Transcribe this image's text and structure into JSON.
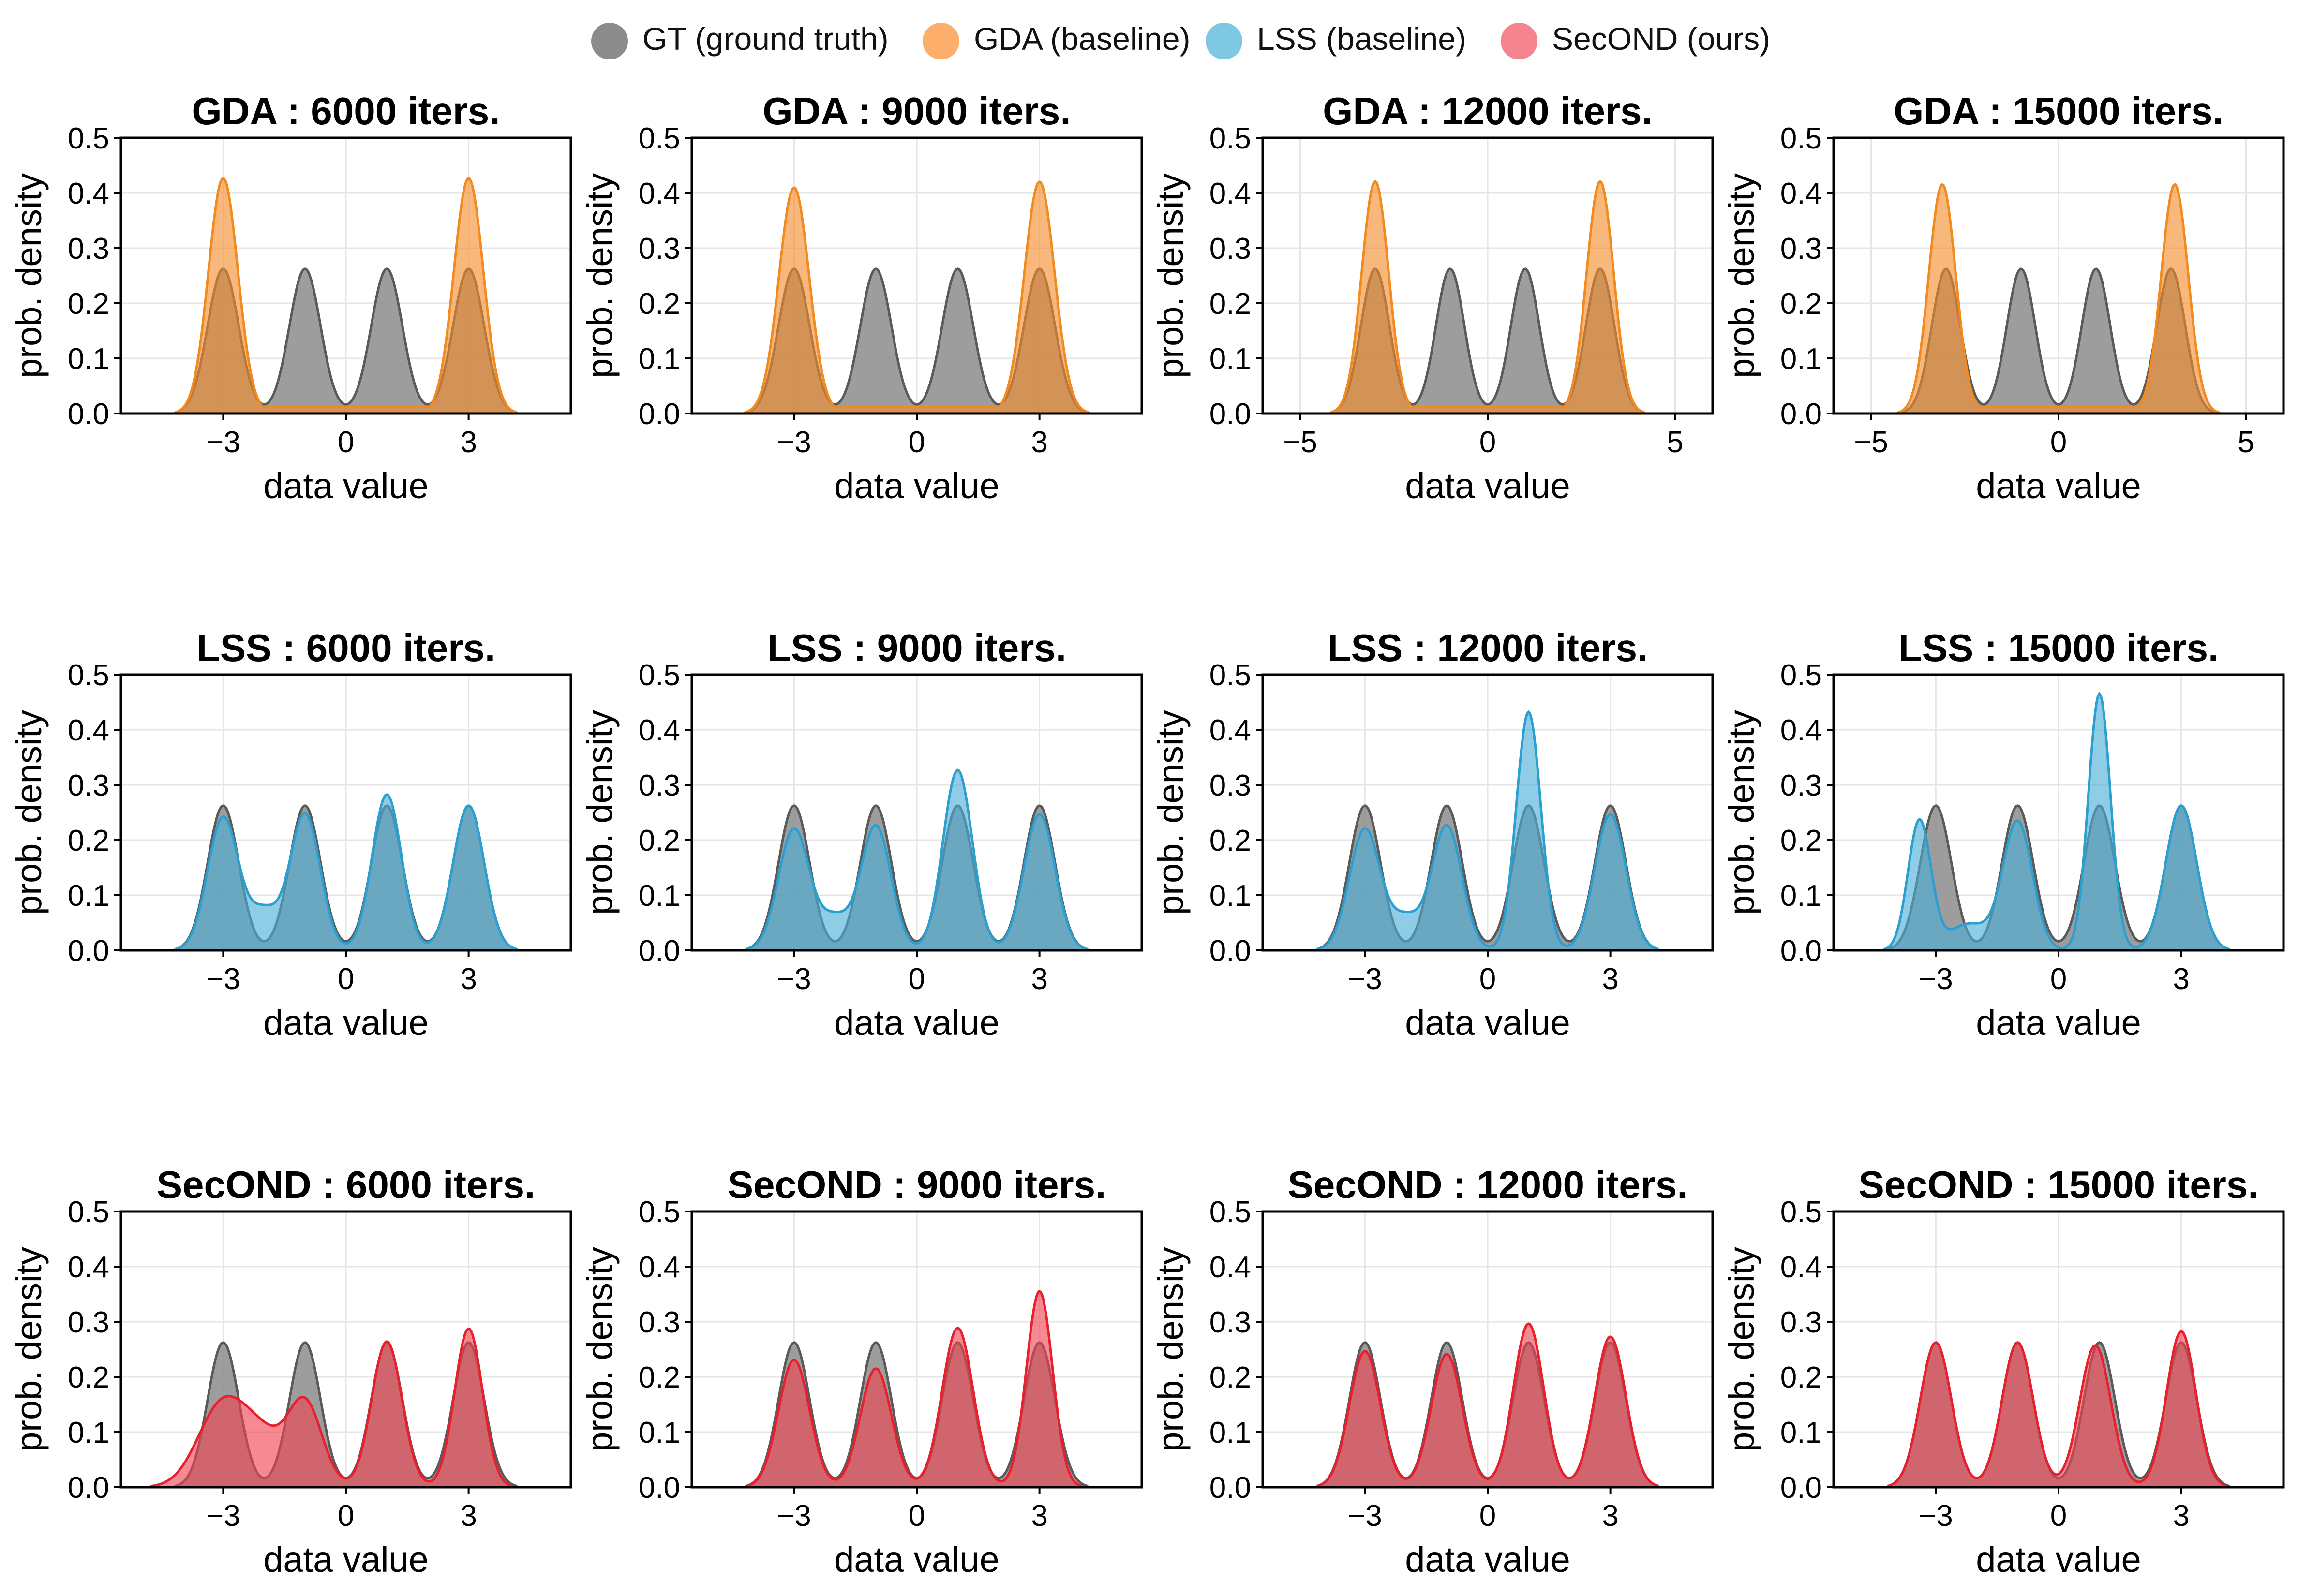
{
  "legend": {
    "entries": [
      {
        "label": "GT (ground truth)",
        "color": "#8c8c8c"
      },
      {
        "label": "GDA (baseline)",
        "color": "#fdae6b"
      },
      {
        "label": "LSS (baseline)",
        "color": "#7ec8e3"
      },
      {
        "label": "SecOND (ours)",
        "color": "#f4858e"
      }
    ]
  },
  "colors": {
    "gt_fill": "#8c8c8c",
    "gt_line": "#5a5a5a",
    "gda_fill": "#f58d2a",
    "gda_line": "#f28a20",
    "lss_fill": "#4aaed9",
    "lss_line": "#2a9fd0",
    "second_fill": "#f0424f",
    "second_line": "#e8202e"
  },
  "chart_data": {
    "type": "area",
    "description_ylabel": "prob. density",
    "xlabel": "data value",
    "ylabel": "prob. density",
    "ylim": [
      0,
      0.5
    ],
    "yticks": [
      "0.0",
      "0.1",
      "0.2",
      "0.3",
      "0.4",
      "0.5"
    ],
    "gt_components": [
      {
        "mu": -3,
        "sigma": 0.38,
        "weight": 0.25
      },
      {
        "mu": -1,
        "sigma": 0.38,
        "weight": 0.25
      },
      {
        "mu": 1,
        "sigma": 0.38,
        "weight": 0.25
      },
      {
        "mu": 3,
        "sigma": 0.38,
        "weight": 0.25
      }
    ],
    "panels": [
      {
        "title": "GDA : 6000 iters.",
        "method": "gda",
        "xlim": [
          -5.5,
          5.5
        ],
        "xticks": [
          -3,
          0,
          3
        ],
        "xtick_labels": [
          "−3",
          "0",
          "3"
        ],
        "components": [
          {
            "mu": -3.0,
            "sigma": 0.36,
            "weight": 0.385
          },
          {
            "mu": 3.0,
            "sigma": 0.36,
            "weight": 0.385
          }
        ],
        "baseline": 0.012
      },
      {
        "title": "GDA : 9000 iters.",
        "method": "gda",
        "xlim": [
          -5.5,
          5.5
        ],
        "xticks": [
          -3,
          0,
          3
        ],
        "xtick_labels": [
          "−3",
          "0",
          "3"
        ],
        "components": [
          {
            "mu": -3.0,
            "sigma": 0.37,
            "weight": 0.38
          },
          {
            "mu": 3.0,
            "sigma": 0.37,
            "weight": 0.39
          }
        ],
        "baseline": 0.012
      },
      {
        "title": "GDA : 12000 iters.",
        "method": "gda",
        "xlim": [
          -6,
          6
        ],
        "xticks": [
          -5,
          0,
          5
        ],
        "xtick_labels": [
          "−5",
          "0",
          "5"
        ],
        "components": [
          {
            "mu": -3.0,
            "sigma": 0.36,
            "weight": 0.38
          },
          {
            "mu": 3.0,
            "sigma": 0.36,
            "weight": 0.38
          }
        ],
        "baseline": 0.012
      },
      {
        "title": "GDA : 15000 iters.",
        "method": "gda",
        "xlim": [
          -6,
          6
        ],
        "xticks": [
          -5,
          0,
          5
        ],
        "xtick_labels": [
          "−5",
          "0",
          "5"
        ],
        "components": [
          {
            "mu": -3.1,
            "sigma": 0.36,
            "weight": 0.375
          },
          {
            "mu": 3.1,
            "sigma": 0.36,
            "weight": 0.375
          }
        ],
        "baseline": 0.012
      },
      {
        "title": "LSS : 6000 iters.",
        "method": "lss",
        "xlim": [
          -5.5,
          5.5
        ],
        "xticks": [
          -3,
          0,
          3
        ],
        "xtick_labels": [
          "−3",
          "0",
          "3"
        ],
        "components": [
          {
            "mu": -3.0,
            "sigma": 0.38,
            "weight": 0.23
          },
          {
            "mu": -2.0,
            "sigma": 0.35,
            "weight": 0.06
          },
          {
            "mu": -1.0,
            "sigma": 0.37,
            "weight": 0.23
          },
          {
            "mu": 1.0,
            "sigma": 0.36,
            "weight": 0.255
          },
          {
            "mu": 3.0,
            "sigma": 0.38,
            "weight": 0.25
          }
        ],
        "baseline": 0.0
      },
      {
        "title": "LSS : 9000 iters.",
        "method": "lss",
        "xlim": [
          -5.5,
          5.5
        ],
        "xticks": [
          -3,
          0,
          3
        ],
        "xtick_labels": [
          "−3",
          "0",
          "3"
        ],
        "components": [
          {
            "mu": -3.0,
            "sigma": 0.38,
            "weight": 0.21
          },
          {
            "mu": -2.0,
            "sigma": 0.35,
            "weight": 0.05
          },
          {
            "mu": -1.0,
            "sigma": 0.37,
            "weight": 0.21
          },
          {
            "mu": 1.0,
            "sigma": 0.36,
            "weight": 0.295
          },
          {
            "mu": 3.0,
            "sigma": 0.38,
            "weight": 0.235
          }
        ],
        "baseline": 0.0
      },
      {
        "title": "LSS : 12000 iters.",
        "method": "lss",
        "xlim": [
          -5.5,
          5.5
        ],
        "xticks": [
          -3,
          0,
          3
        ],
        "xtick_labels": [
          "−3",
          "0",
          "3"
        ],
        "components": [
          {
            "mu": -3.0,
            "sigma": 0.38,
            "weight": 0.21
          },
          {
            "mu": -2.0,
            "sigma": 0.35,
            "weight": 0.05
          },
          {
            "mu": -1.0,
            "sigma": 0.37,
            "weight": 0.21
          },
          {
            "mu": 1.0,
            "sigma": 0.3,
            "weight": 0.325
          },
          {
            "mu": 3.0,
            "sigma": 0.38,
            "weight": 0.235
          }
        ],
        "baseline": 0.0
      },
      {
        "title": "LSS : 15000 iters.",
        "method": "lss",
        "xlim": [
          -5.5,
          5.5
        ],
        "xticks": [
          -3,
          0,
          3
        ],
        "xtick_labels": [
          "−3",
          "0",
          "3"
        ],
        "components": [
          {
            "mu": -3.4,
            "sigma": 0.28,
            "weight": 0.165
          },
          {
            "mu": -2.2,
            "sigma": 0.5,
            "weight": 0.06
          },
          {
            "mu": -1.0,
            "sigma": 0.36,
            "weight": 0.21
          },
          {
            "mu": 1.0,
            "sigma": 0.27,
            "weight": 0.315
          },
          {
            "mu": 3.0,
            "sigma": 0.38,
            "weight": 0.25
          }
        ],
        "baseline": 0.0
      },
      {
        "title": "SecOND : 6000 iters.",
        "method": "secOND",
        "xlim": [
          -5.5,
          5.5
        ],
        "xticks": [
          -3,
          0,
          3
        ],
        "xtick_labels": [
          "−3",
          "0",
          "3"
        ],
        "components": [
          {
            "mu": -3.0,
            "sigma": 0.6,
            "weight": 0.23
          },
          {
            "mu": -2.0,
            "sigma": 0.5,
            "weight": 0.09
          },
          {
            "mu": -1.0,
            "sigma": 0.42,
            "weight": 0.16
          },
          {
            "mu": 1.0,
            "sigma": 0.37,
            "weight": 0.245
          },
          {
            "mu": 3.0,
            "sigma": 0.34,
            "weight": 0.245
          }
        ],
        "baseline": 0.0
      },
      {
        "title": "SecOND : 9000 iters.",
        "method": "secOND",
        "xlim": [
          -5.5,
          5.5
        ],
        "xticks": [
          -3,
          0,
          3
        ],
        "xtick_labels": [
          "−3",
          "0",
          "3"
        ],
        "components": [
          {
            "mu": -3.0,
            "sigma": 0.38,
            "weight": 0.22
          },
          {
            "mu": -1.0,
            "sigma": 0.38,
            "weight": 0.205
          },
          {
            "mu": 1.0,
            "sigma": 0.38,
            "weight": 0.275
          },
          {
            "mu": 3.0,
            "sigma": 0.32,
            "weight": 0.285
          }
        ],
        "baseline": 0.0
      },
      {
        "title": "SecOND : 12000 iters.",
        "method": "secOND",
        "xlim": [
          -5.5,
          5.5
        ],
        "xticks": [
          -3,
          0,
          3
        ],
        "xtick_labels": [
          "−3",
          "0",
          "3"
        ],
        "components": [
          {
            "mu": -3.0,
            "sigma": 0.38,
            "weight": 0.235
          },
          {
            "mu": -1.0,
            "sigma": 0.38,
            "weight": 0.23
          },
          {
            "mu": 1.0,
            "sigma": 0.37,
            "weight": 0.275
          },
          {
            "mu": 3.0,
            "sigma": 0.38,
            "weight": 0.26
          }
        ],
        "baseline": 0.0
      },
      {
        "title": "SecOND : 15000 iters.",
        "method": "secOND",
        "xlim": [
          -5.5,
          5.5
        ],
        "xticks": [
          -3,
          0,
          3
        ],
        "xtick_labels": [
          "−3",
          "0",
          "3"
        ],
        "components": [
          {
            "mu": -3.0,
            "sigma": 0.38,
            "weight": 0.25
          },
          {
            "mu": -1.0,
            "sigma": 0.38,
            "weight": 0.25
          },
          {
            "mu": 0.9,
            "sigma": 0.38,
            "weight": 0.245
          },
          {
            "mu": 3.0,
            "sigma": 0.36,
            "weight": 0.255
          }
        ],
        "baseline": 0.0
      }
    ]
  }
}
